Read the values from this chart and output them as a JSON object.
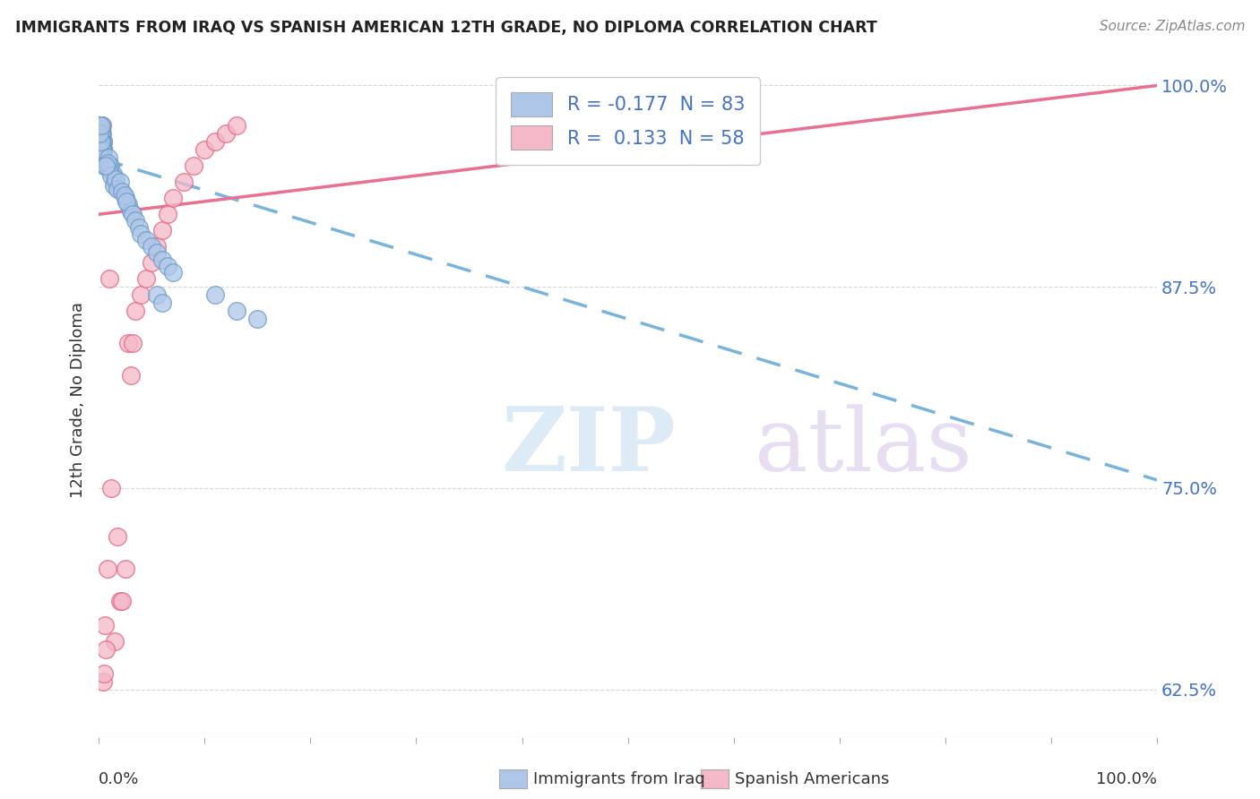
{
  "title": "IMMIGRANTS FROM IRAQ VS SPANISH AMERICAN 12TH GRADE, NO DIPLOMA CORRELATION CHART",
  "source": "Source: ZipAtlas.com",
  "ylabel": "12th Grade, No Diploma",
  "yticks": [
    "62.5%",
    "75.0%",
    "87.5%",
    "100.0%"
  ],
  "ytick_vals": [
    0.625,
    0.75,
    0.875,
    1.0
  ],
  "legend_label_iraq": "Immigrants from Iraq",
  "legend_label_spanish": "Spanish Americans",
  "blue_R": -0.177,
  "blue_N": 83,
  "pink_R": 0.133,
  "pink_N": 58,
  "blue_line_x": [
    0.0,
    1.0
  ],
  "blue_line_y": [
    0.955,
    0.755
  ],
  "pink_line_x": [
    0.0,
    1.0
  ],
  "pink_line_y": [
    0.92,
    1.0
  ],
  "blue_scatter_x": [
    0.002,
    0.003,
    0.001,
    0.004,
    0.002,
    0.003,
    0.001,
    0.005,
    0.002,
    0.001,
    0.003,
    0.002,
    0.001,
    0.004,
    0.002,
    0.001,
    0.003,
    0.002,
    0.001,
    0.004,
    0.002,
    0.001,
    0.003,
    0.002,
    0.001,
    0.002,
    0.001,
    0.003,
    0.002,
    0.001,
    0.002,
    0.001,
    0.003,
    0.002,
    0.001,
    0.004,
    0.002,
    0.001,
    0.003,
    0.002,
    0.001,
    0.002,
    0.001,
    0.003,
    0.001,
    0.002,
    0.001,
    0.002,
    0.001,
    0.002,
    0.009,
    0.011,
    0.013,
    0.015,
    0.01,
    0.008,
    0.012,
    0.014,
    0.016,
    0.007,
    0.018,
    0.02,
    0.022,
    0.025,
    0.028,
    0.024,
    0.03,
    0.026,
    0.032,
    0.035,
    0.038,
    0.04,
    0.045,
    0.05,
    0.055,
    0.06,
    0.065,
    0.07,
    0.055,
    0.06,
    0.11,
    0.13,
    0.15
  ],
  "blue_scatter_y": [
    0.97,
    0.96,
    0.975,
    0.965,
    0.955,
    0.96,
    0.97,
    0.95,
    0.96,
    0.975,
    0.965,
    0.96,
    0.97,
    0.955,
    0.965,
    0.96,
    0.955,
    0.97,
    0.965,
    0.96,
    0.975,
    0.97,
    0.96,
    0.965,
    0.975,
    0.96,
    0.965,
    0.97,
    0.975,
    0.96,
    0.955,
    0.97,
    0.965,
    0.96,
    0.975,
    0.965,
    0.97,
    0.975,
    0.96,
    0.965,
    0.97,
    0.975,
    0.965,
    0.96,
    0.975,
    0.97,
    0.96,
    0.965,
    0.97,
    0.975,
    0.955,
    0.95,
    0.945,
    0.94,
    0.948,
    0.952,
    0.944,
    0.938,
    0.942,
    0.95,
    0.936,
    0.94,
    0.934,
    0.93,
    0.926,
    0.932,
    0.922,
    0.928,
    0.92,
    0.916,
    0.912,
    0.908,
    0.904,
    0.9,
    0.896,
    0.892,
    0.888,
    0.884,
    0.87,
    0.865,
    0.87,
    0.86,
    0.855
  ],
  "pink_scatter_x": [
    0.002,
    0.003,
    0.001,
    0.004,
    0.002,
    0.001,
    0.003,
    0.002,
    0.001,
    0.004,
    0.002,
    0.001,
    0.003,
    0.001,
    0.002,
    0.001,
    0.003,
    0.002,
    0.001,
    0.004,
    0.002,
    0.001,
    0.003,
    0.002,
    0.001,
    0.002,
    0.001,
    0.003,
    0.002,
    0.01,
    0.015,
    0.02,
    0.025,
    0.018,
    0.012,
    0.022,
    0.028,
    0.03,
    0.035,
    0.032,
    0.04,
    0.045,
    0.05,
    0.055,
    0.06,
    0.065,
    0.07,
    0.08,
    0.09,
    0.1,
    0.11,
    0.12,
    0.13,
    0.004,
    0.006,
    0.008,
    0.005,
    0.007
  ],
  "pink_scatter_y": [
    0.97,
    0.96,
    0.975,
    0.965,
    0.955,
    0.97,
    0.96,
    0.965,
    0.975,
    0.96,
    0.955,
    0.97,
    0.965,
    0.975,
    0.96,
    0.965,
    0.955,
    0.97,
    0.975,
    0.96,
    0.965,
    0.97,
    0.955,
    0.975,
    0.96,
    0.965,
    0.97,
    0.975,
    0.96,
    0.88,
    0.655,
    0.68,
    0.7,
    0.72,
    0.75,
    0.68,
    0.84,
    0.82,
    0.86,
    0.84,
    0.87,
    0.88,
    0.89,
    0.9,
    0.91,
    0.92,
    0.93,
    0.94,
    0.95,
    0.96,
    0.965,
    0.97,
    0.975,
    0.63,
    0.665,
    0.7,
    0.635,
    0.65
  ],
  "blue_line_color": "#7ab3d9",
  "pink_line_color": "#e87090",
  "scatter_blue_color": "#aec6e8",
  "scatter_pink_color": "#f4b8c8",
  "scatter_blue_edge": "#6899c4",
  "scatter_pink_edge": "#e06080",
  "background_color": "#ffffff",
  "grid_color": "#cccccc",
  "watermark_zip_color": "#c5dff0",
  "watermark_atlas_color": "#d8c8e8",
  "xmin": 0.0,
  "xmax": 1.0,
  "ymin": 0.595,
  "ymax": 1.015
}
